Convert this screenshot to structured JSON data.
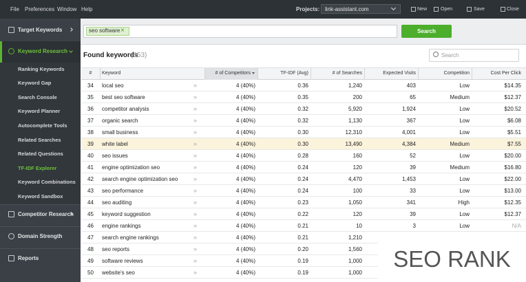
{
  "menu": [
    "File",
    "Preferences",
    "Window",
    "Help"
  ],
  "toolbar": {
    "projects_label": "Projects:",
    "project": "link-assistant.com",
    "buttons": [
      "New",
      "Open",
      "Save",
      "Close"
    ]
  },
  "sidebar": {
    "top": [
      "Target Keywords",
      "Keyword Research"
    ],
    "subitems": [
      "Ranking Keywords",
      "Keyword Gap",
      "Search Console",
      "Keyword Planner",
      "Autocomplete Tools",
      "Related Searches",
      "Related Questions",
      "TF-IDF Explorer",
      "Keyword Combinations",
      "Keyword Sandbox"
    ],
    "bottom": [
      "Competitor Research",
      "Domain Strength",
      "Reports"
    ]
  },
  "search": {
    "tag": "seo software",
    "button": "Search"
  },
  "results": {
    "title": "Found keywords",
    "count": "(153)",
    "search_placeholder": "Search"
  },
  "table": {
    "columns": [
      "#",
      "Keyword",
      "# of Competitors",
      "TF-IDF (Avg)",
      "# of Searches",
      "Expected Visits",
      "Competition",
      "Cost Per Click"
    ],
    "rows": [
      [
        "34",
        "local seo",
        "4 (40%)",
        "0.36",
        "1,240",
        "403",
        "Low",
        "$14.35"
      ],
      [
        "35",
        "best seo software",
        "4 (40%)",
        "0.35",
        "200",
        "65",
        "Medium",
        "$12.37"
      ],
      [
        "36",
        "competitor analysis",
        "4 (40%)",
        "0.32",
        "5,920",
        "1,924",
        "Low",
        "$20.52"
      ],
      [
        "37",
        "organic search",
        "4 (40%)",
        "0.32",
        "1,130",
        "367",
        "Low",
        "$6.08"
      ],
      [
        "38",
        "small business",
        "4 (40%)",
        "0.30",
        "12,310",
        "4,001",
        "Low",
        "$5.51"
      ],
      [
        "39",
        "white label",
        "4 (40%)",
        "0.30",
        "13,490",
        "4,384",
        "Medium",
        "$7.55"
      ],
      [
        "40",
        "seo issues",
        "4 (40%)",
        "0.28",
        "160",
        "52",
        "Low",
        "$20.00"
      ],
      [
        "41",
        "engine optimization seo",
        "4 (40%)",
        "0.24",
        "120",
        "39",
        "Medium",
        "$16.80"
      ],
      [
        "42",
        "search engine optimization seo",
        "4 (40%)",
        "0.24",
        "4,470",
        "1,453",
        "Low",
        "$22.00"
      ],
      [
        "43",
        "seo performance",
        "4 (40%)",
        "0.24",
        "100",
        "33",
        "Low",
        "$13.00"
      ],
      [
        "44",
        "seo auditing",
        "4 (40%)",
        "0.23",
        "1,050",
        "341",
        "High",
        "$12.35"
      ],
      [
        "45",
        "keyword suggestion",
        "4 (40%)",
        "0.22",
        "120",
        "39",
        "Low",
        "$12.37"
      ],
      [
        "46",
        "engine rankings",
        "4 (40%)",
        "0.21",
        "10",
        "3",
        "Low",
        "N/A"
      ],
      [
        "47",
        "search engine rankings",
        "4 (40%)",
        "0.21",
        "1,210"
      ],
      [
        "48",
        "seo reports",
        "4 (40%)",
        "0.20",
        "1,560"
      ],
      [
        "49",
        "software reviews",
        "4 (40%)",
        "0.19",
        "1,000"
      ],
      [
        "50",
        "website's seo",
        "4 (40%)",
        "0.19",
        "1,000"
      ]
    ],
    "highlight_row": 5
  },
  "overlay": "SEO RANK"
}
